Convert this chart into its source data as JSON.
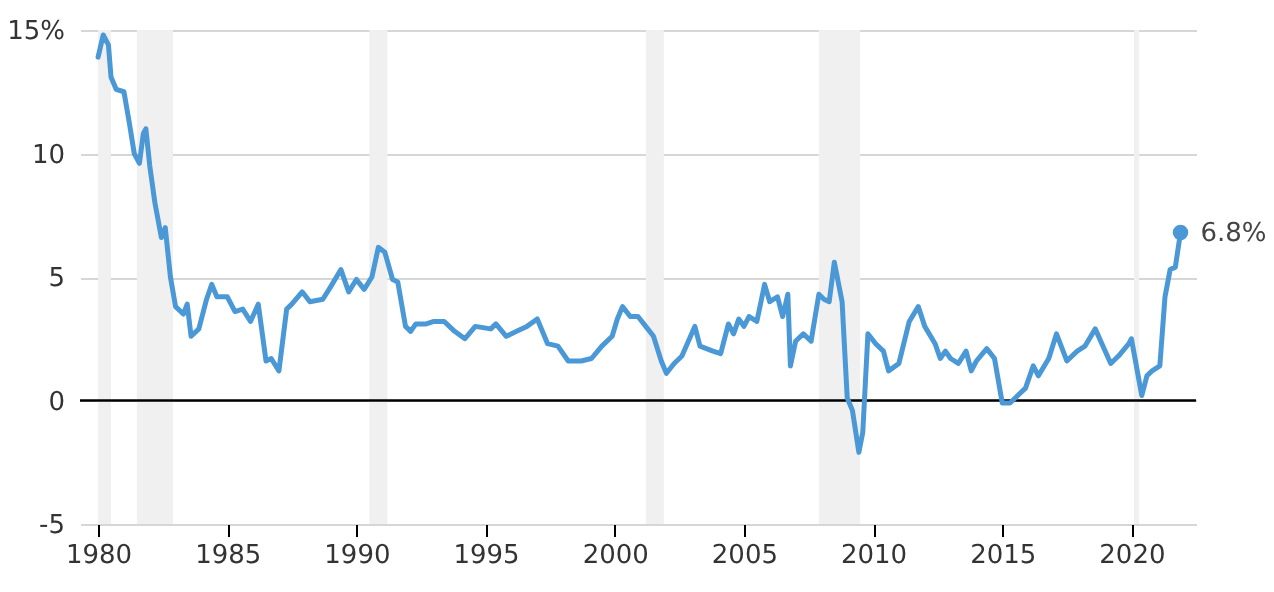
{
  "chart_data": {
    "type": "line",
    "xlim": [
      1979.3,
      2022.5
    ],
    "xticks": [
      1980,
      1985,
      1990,
      1995,
      2000,
      2005,
      2010,
      2015,
      2020
    ],
    "ylim": [
      -5,
      15
    ],
    "yticks": [
      -5,
      0,
      5,
      10,
      {
        "value": 15,
        "label": "15%"
      }
    ],
    "grid": "y",
    "bands": [
      {
        "axis": "x",
        "from": 1980.0,
        "to": 1980.5,
        "color": "#f0f0f0"
      },
      {
        "axis": "x",
        "from": 1981.5,
        "to": 1982.9,
        "color": "#f0f0f0"
      },
      {
        "axis": "x",
        "from": 1990.5,
        "to": 1991.2,
        "color": "#f0f0f0"
      },
      {
        "axis": "x",
        "from": 2001.2,
        "to": 2001.9,
        "color": "#f0f0f0"
      },
      {
        "axis": "x",
        "from": 2007.9,
        "to": 2009.5,
        "color": "#f0f0f0"
      },
      {
        "axis": "x",
        "from": 2020.1,
        "to": 2020.3,
        "color": "#f0f0f0"
      }
    ],
    "ref_lines": [
      {
        "axis": "y",
        "value": 0,
        "color": "#000000"
      }
    ],
    "series": [
      {
        "type": "line",
        "color": "#4b98d6",
        "x": [
          1980.0,
          1980.2,
          1980.4,
          1980.5,
          1980.7,
          1981.0,
          1981.2,
          1981.4,
          1981.6,
          1981.75,
          1981.85,
          1982.0,
          1982.2,
          1982.45,
          1982.6,
          1982.8,
          1983.0,
          1983.3,
          1983.45,
          1983.6,
          1983.9,
          1984.2,
          1984.4,
          1984.6,
          1985.0,
          1985.3,
          1985.6,
          1985.9,
          1986.2,
          1986.5,
          1986.7,
          1987.0,
          1987.3,
          1987.5,
          1987.9,
          1988.2,
          1988.7,
          1989.0,
          1989.4,
          1989.7,
          1990.0,
          1990.3,
          1990.6,
          1990.85,
          1991.1,
          1991.4,
          1991.6,
          1991.9,
          1992.1,
          1992.3,
          1992.7,
          1993.0,
          1993.4,
          1993.8,
          1994.2,
          1994.6,
          1995.2,
          1995.4,
          1995.8,
          1996.2,
          1996.6,
          1997.0,
          1997.4,
          1997.8,
          1998.2,
          1998.7,
          1999.1,
          1999.5,
          1999.9,
          2000.1,
          2000.3,
          2000.6,
          2000.9,
          2001.2,
          2001.5,
          2001.8,
          2002.0,
          2002.3,
          2002.6,
          2003.1,
          2003.3,
          2003.8,
          2004.1,
          2004.4,
          2004.6,
          2004.8,
          2005.0,
          2005.2,
          2005.5,
          2005.8,
          2006.0,
          2006.3,
          2006.5,
          2006.7,
          2006.8,
          2007.0,
          2007.3,
          2007.6,
          2007.9,
          2008.1,
          2008.3,
          2008.5,
          2008.8,
          2009.0,
          2009.2,
          2009.45,
          2009.6,
          2009.8,
          2010.1,
          2010.4,
          2010.6,
          2011.0,
          2011.4,
          2011.75,
          2012.0,
          2012.4,
          2012.6,
          2012.8,
          2013.0,
          2013.3,
          2013.6,
          2013.8,
          2014.0,
          2014.4,
          2014.7,
          2015.0,
          2015.3,
          2015.6,
          2015.9,
          2016.2,
          2016.4,
          2016.8,
          2017.1,
          2017.5,
          2017.9,
          2018.2,
          2018.6,
          2018.9,
          2019.2,
          2019.5,
          2019.9,
          2020.0,
          2020.4,
          2020.6,
          2020.8,
          2021.1,
          2021.3,
          2021.5,
          2021.7,
          2021.9
        ],
        "values": [
          13.9,
          14.8,
          14.4,
          13.1,
          12.6,
          12.5,
          11.3,
          10.0,
          9.6,
          10.8,
          11.0,
          9.5,
          8.0,
          6.6,
          7.0,
          5.0,
          3.8,
          3.5,
          3.9,
          2.6,
          2.9,
          4.1,
          4.7,
          4.2,
          4.2,
          3.6,
          3.7,
          3.2,
          3.9,
          1.6,
          1.7,
          1.2,
          3.7,
          3.9,
          4.4,
          4.0,
          4.1,
          4.6,
          5.3,
          4.4,
          4.9,
          4.5,
          5.0,
          6.2,
          6.0,
          4.9,
          4.8,
          3.0,
          2.8,
          3.1,
          3.1,
          3.2,
          3.2,
          2.8,
          2.5,
          3.0,
          2.9,
          3.1,
          2.6,
          2.8,
          3.0,
          3.3,
          2.3,
          2.2,
          1.6,
          1.6,
          1.7,
          2.2,
          2.6,
          3.3,
          3.8,
          3.4,
          3.4,
          3.0,
          2.6,
          1.6,
          1.1,
          1.5,
          1.8,
          3.0,
          2.2,
          2.0,
          1.9,
          3.1,
          2.7,
          3.3,
          3.0,
          3.4,
          3.2,
          4.7,
          4.0,
          4.2,
          3.4,
          4.3,
          1.4,
          2.4,
          2.7,
          2.4,
          4.3,
          4.1,
          4.0,
          5.6,
          4.0,
          0.1,
          -0.4,
          -2.1,
          -1.3,
          2.7,
          2.3,
          2.0,
          1.2,
          1.5,
          3.2,
          3.8,
          3.0,
          2.3,
          1.7,
          2.0,
          1.7,
          1.5,
          2.0,
          1.2,
          1.6,
          2.1,
          1.7,
          -0.1,
          -0.1,
          0.2,
          0.5,
          1.4,
          1.0,
          1.7,
          2.7,
          1.6,
          2.0,
          2.2,
          2.9,
          2.2,
          1.5,
          1.8,
          2.3,
          2.5,
          0.2,
          1.0,
          1.2,
          1.4,
          4.2,
          5.3,
          5.4,
          6.8
        ]
      },
      {
        "type": "scatter",
        "color": "#4b98d6",
        "x": [
          2021.9
        ],
        "values": [
          6.8
        ],
        "value_labels": [
          "6.8%"
        ]
      }
    ]
  }
}
